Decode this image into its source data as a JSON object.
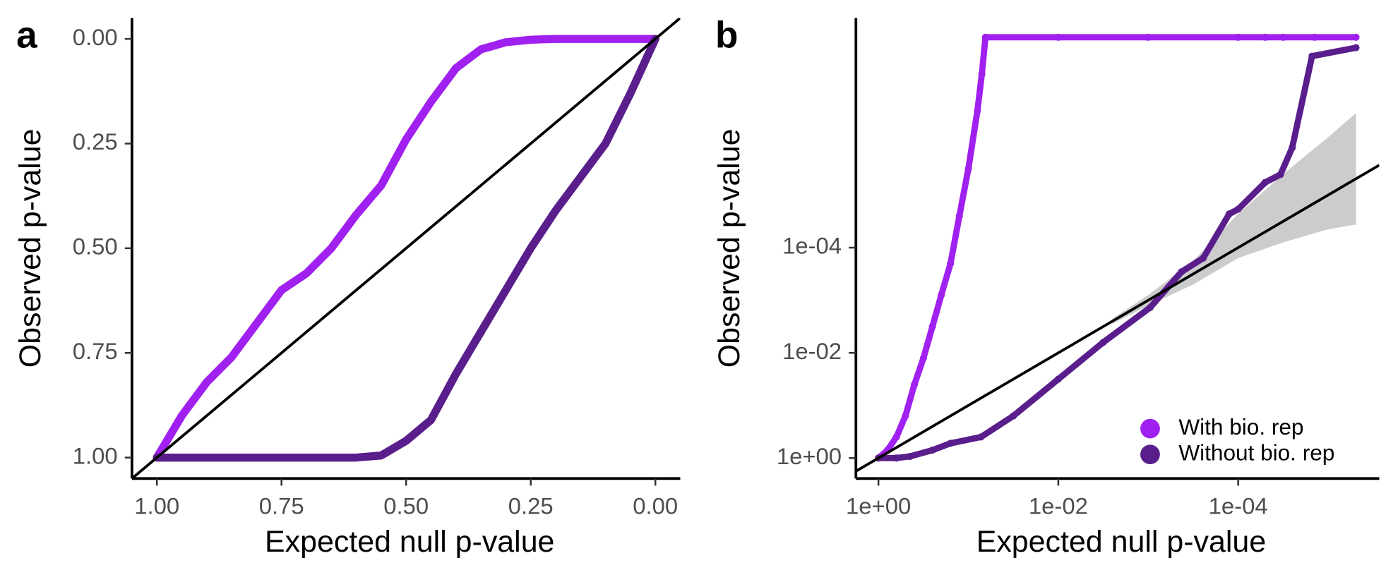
{
  "chart_data": [
    {
      "type": "line",
      "panel_label": "a",
      "x_label": "Expected null p-value",
      "y_label": "Observed p-value",
      "xlim": [
        1.05,
        -0.05
      ],
      "ylim": [
        1.05,
        -0.05
      ],
      "diagonal": true,
      "xticks": [
        {
          "value": 1,
          "label": "1.00"
        },
        {
          "value": 0.75,
          "label": "0.75"
        },
        {
          "value": 0.5,
          "label": "0.50"
        },
        {
          "value": 0.25,
          "label": "0.25"
        },
        {
          "value": 0,
          "label": "0.00"
        }
      ],
      "yticks": [
        {
          "value": 1,
          "label": "1.00"
        },
        {
          "value": 0.75,
          "label": "0.75"
        },
        {
          "value": 0.5,
          "label": "0.50"
        },
        {
          "value": 0.25,
          "label": "0.25"
        },
        {
          "value": 0,
          "label": "0.00"
        }
      ],
      "x": [
        1,
        0.95,
        0.9,
        0.85,
        0.8,
        0.75,
        0.7,
        0.65,
        0.6,
        0.55,
        0.5,
        0.45,
        0.4,
        0.35,
        0.3,
        0.25,
        0.2,
        0.15,
        0.1,
        0.05,
        0
      ],
      "series": [
        {
          "name": "With bio. rep",
          "color": "#a020f0",
          "values": [
            1,
            0.9,
            0.82,
            0.76,
            0.68,
            0.6,
            0.56,
            0.5,
            0.42,
            0.35,
            0.24,
            0.15,
            0.07,
            0.025,
            0.008,
            0.002,
            0,
            0,
            0,
            0,
            0
          ]
        },
        {
          "name": "Without bio. rep",
          "color": "#5a1e8c",
          "values": [
            1,
            1,
            1,
            1,
            1,
            1,
            1,
            1,
            1,
            0.995,
            0.96,
            0.91,
            0.8,
            0.7,
            0.6,
            0.5,
            0.41,
            0.33,
            0.25,
            0.13,
            0
          ]
        }
      ]
    },
    {
      "type": "scatter",
      "panel_label": "b",
      "x_label": "Expected null p-value",
      "y_label": "Observed p-value",
      "log_scale": true,
      "xlim": [
        1.78,
        2.7e-06
      ],
      "ylim": [
        2.45,
        4.3e-09
      ],
      "diagonal": true,
      "legend": "bottom-right",
      "xticks": [
        {
          "value": 1,
          "label": "1e+00"
        },
        {
          "value": 0.01,
          "label": "1e-02"
        },
        {
          "value": 0.0001,
          "label": "1e-04"
        }
      ],
      "yticks": [
        {
          "value": 1,
          "label": "1e+00"
        },
        {
          "value": 0.01,
          "label": "1e-02"
        },
        {
          "value": 0.0001,
          "label": "1e-04"
        }
      ],
      "band": {
        "color": "#cccccc",
        "x": [
          0.00251,
          0.001,
          0.000316,
          0.0001,
          3.16e-05,
          1e-05,
          4.9e-06
        ],
        "low": [
          0.00224,
          0.000794,
          0.000178,
          2.29e-05,
          3.98e-06,
          7.94e-07,
          2.75e-07
        ],
        "high": [
          0.00282,
          0.00126,
          0.000501,
          0.000158,
          7.94e-05,
          4.47e-05,
          3.63e-05
        ]
      },
      "series": [
        {
          "name": "With bio. rep",
          "color": "#a020f0",
          "x": [
            1,
            0.794,
            0.631,
            0.501,
            0.398,
            0.316,
            0.251,
            0.2,
            0.158,
            0.126,
            0.1,
            0.0794,
            0.0708,
            0.0646,
            0.01,
            0.001,
            0.0001,
            5.01e-05,
            3.16e-05,
            1.41e-05,
            4.9e-06
          ],
          "values": [
            1,
            0.708,
            0.398,
            0.158,
            0.0398,
            0.0126,
            0.00316,
            0.000794,
            0.0002,
            2.51e-05,
            3.16e-06,
            2.51e-07,
            5.01e-08,
            1e-08,
            1e-08,
            1e-08,
            1e-08,
            1e-08,
            1e-08,
            1e-08,
            1e-08
          ]
        },
        {
          "name": "Without bio. rep",
          "color": "#5a1e8c",
          "x": [
            1,
            0.631,
            0.447,
            0.251,
            0.158,
            0.0724,
            0.0316,
            0.01,
            0.00316,
            0.000955,
            0.000427,
            0.000245,
            0.000126,
            0.0001,
            5.01e-05,
            3.39e-05,
            2.51e-05,
            1.51e-05,
            4.9e-06
          ],
          "values": [
            1,
            1,
            0.933,
            0.708,
            0.525,
            0.398,
            0.158,
            0.0316,
            0.0063,
            0.00138,
            0.000288,
            0.000158,
            2.29e-05,
            1.86e-05,
            5.75e-06,
            4.07e-06,
            1.26e-06,
            2.29e-08,
            1.58e-08
          ]
        }
      ]
    }
  ]
}
